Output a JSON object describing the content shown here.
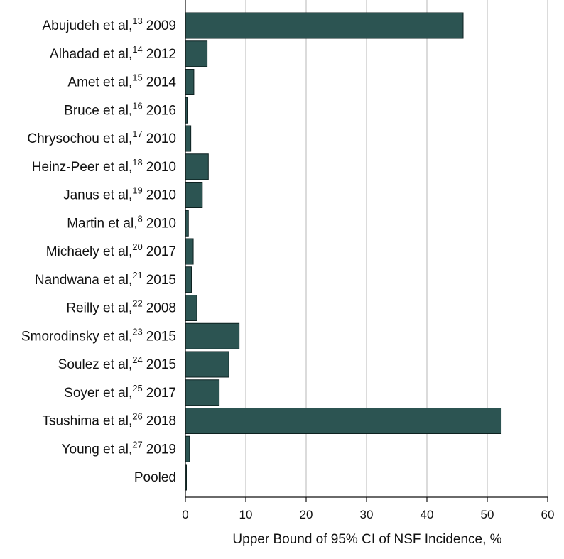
{
  "chart_data": {
    "type": "bar",
    "orientation": "horizontal",
    "title": "",
    "xlabel": "Upper Bound of 95% CI of NSF Incidence, %",
    "ylabel": "",
    "xlim": [
      0,
      60
    ],
    "x_ticks": [
      "0",
      "10",
      "20",
      "30",
      "40",
      "50",
      "60"
    ],
    "grid": "vertical",
    "bar_color": "#2c5452",
    "categories": [
      {
        "name": "Abujudeh et al,",
        "ref": "13",
        "year": "2009",
        "value": 46.0
      },
      {
        "name": "Alhadad et al,",
        "ref": "14",
        "year": "2012",
        "value": 3.6
      },
      {
        "name": "Amet et al,",
        "ref": "15",
        "year": "2014",
        "value": 1.4
      },
      {
        "name": "Bruce et al,",
        "ref": "16",
        "year": "2016",
        "value": 0.3
      },
      {
        "name": "Chrysochou et al,",
        "ref": "17",
        "year": "2010",
        "value": 0.9
      },
      {
        "name": "Heinz-Peer et al,",
        "ref": "18",
        "year": "2010",
        "value": 3.8
      },
      {
        "name": "Janus et al,",
        "ref": "19",
        "year": "2010",
        "value": 2.8
      },
      {
        "name": "Martin et al,",
        "ref": "8",
        "year": "2010",
        "value": 0.5
      },
      {
        "name": "Michaely et al,",
        "ref": "20",
        "year": "2017",
        "value": 1.3
      },
      {
        "name": "Nandwana et al,",
        "ref": "21",
        "year": "2015",
        "value": 1.0
      },
      {
        "name": "Reilly et al,",
        "ref": "22",
        "year": "2008",
        "value": 1.9
      },
      {
        "name": "Smorodinsky et al,",
        "ref": "23",
        "year": "2015",
        "value": 8.9
      },
      {
        "name": "Soulez et al,",
        "ref": "24",
        "year": "2015",
        "value": 7.2
      },
      {
        "name": "Soyer et al,",
        "ref": "25",
        "year": "2017",
        "value": 5.6
      },
      {
        "name": "Tsushima et al,",
        "ref": "26",
        "year": "2018",
        "value": 52.3
      },
      {
        "name": "Young et al,",
        "ref": "27",
        "year": "2019",
        "value": 0.7
      },
      {
        "name": "Pooled",
        "ref": "",
        "year": "",
        "value": 0.1
      }
    ]
  }
}
